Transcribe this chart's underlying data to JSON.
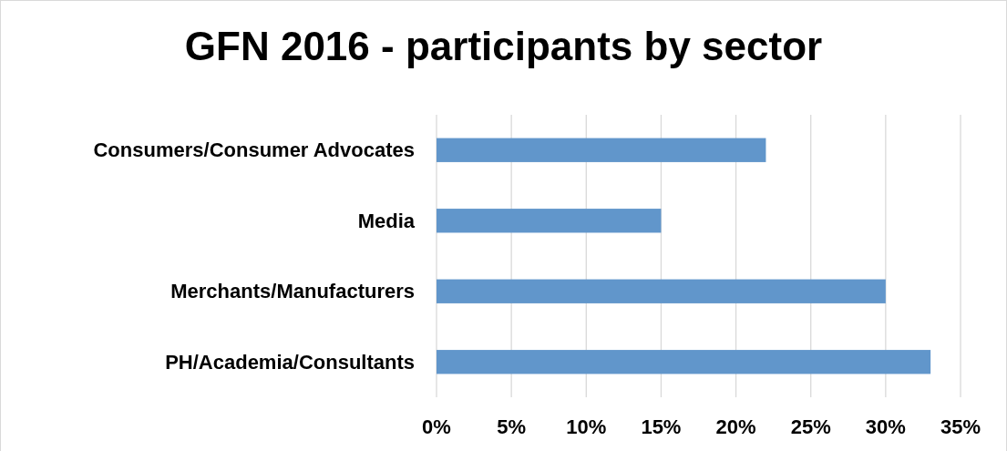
{
  "chart_data": {
    "type": "bar",
    "orientation": "horizontal",
    "title": "GFN 2016 - participants by sector",
    "categories": [
      "Consumers/Consumer Advocates",
      "Media",
      "Merchants/Manufacturers",
      "PH/Academia/Consultants"
    ],
    "values": [
      22,
      15,
      30,
      33
    ],
    "color": "#6196cb",
    "xlim": [
      0,
      35
    ],
    "xticks": [
      {
        "value": 0,
        "label": "0%"
      },
      {
        "value": 5,
        "label": "5%"
      },
      {
        "value": 10,
        "label": "10%"
      },
      {
        "value": 15,
        "label": "15%"
      },
      {
        "value": 20,
        "label": "20%"
      },
      {
        "value": 25,
        "label": "25%"
      },
      {
        "value": 30,
        "label": "30%"
      },
      {
        "value": 35,
        "label": "35%"
      }
    ],
    "grid": "x"
  }
}
